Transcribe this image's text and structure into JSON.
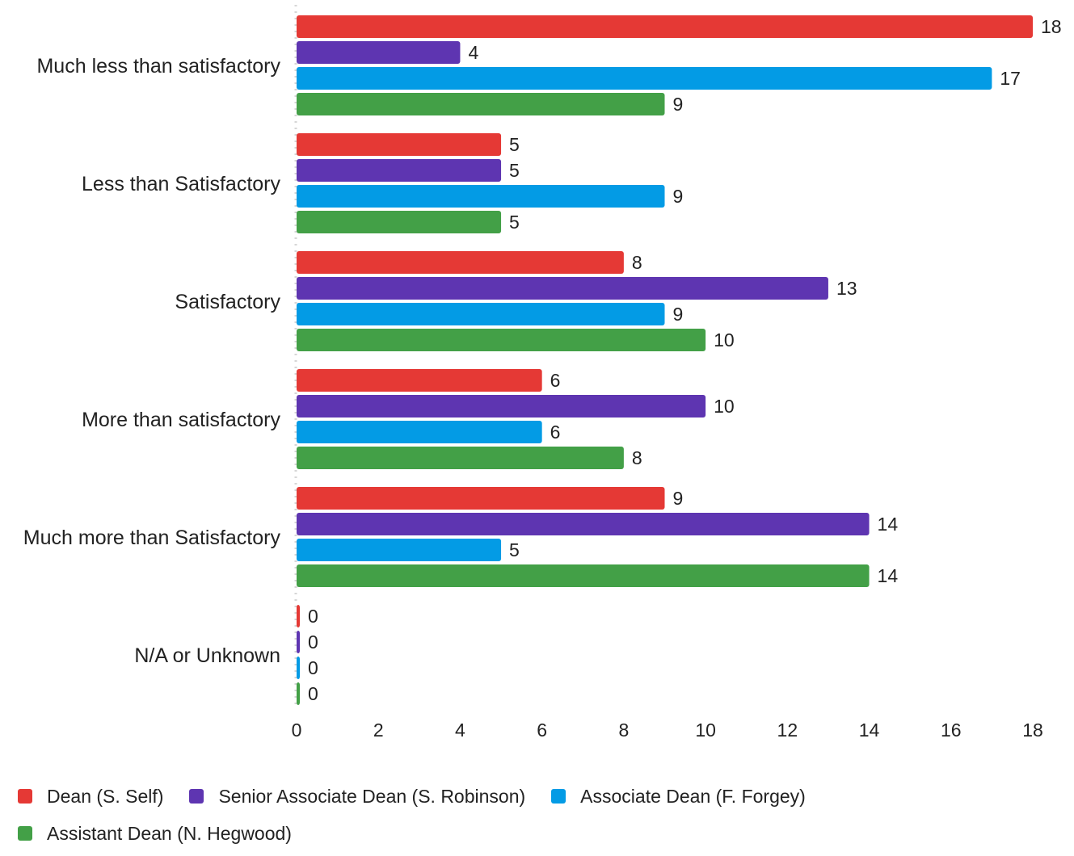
{
  "chart_data": {
    "type": "bar",
    "orientation": "horizontal",
    "categories": [
      "Much less than satisfactory",
      "Less than Satisfactory",
      "Satisfactory",
      "More than satisfactory",
      "Much more than Satisfactory",
      "N/A or Unknown"
    ],
    "series": [
      {
        "name": "Dean (S. Self)",
        "color": "#e53935",
        "values": [
          18,
          5,
          8,
          6,
          9,
          0
        ]
      },
      {
        "name": "Senior Associate Dean (S. Robinson)",
        "color": "#5e35b1",
        "values": [
          4,
          5,
          13,
          10,
          14,
          0
        ]
      },
      {
        "name": "Associate Dean (F. Forgey)",
        "color": "#039be5",
        "values": [
          17,
          9,
          9,
          6,
          5,
          0
        ]
      },
      {
        "name": "Assistant Dean (N. Hegwood)",
        "color": "#43a047",
        "values": [
          9,
          5,
          10,
          8,
          14,
          0
        ]
      }
    ],
    "xlim": [
      0,
      18
    ],
    "xticks": [
      "0",
      "2",
      "4",
      "6",
      "8",
      "10",
      "12",
      "14",
      "16",
      "18"
    ],
    "grid": false,
    "data_labels": true,
    "legend_position": "bottom"
  }
}
